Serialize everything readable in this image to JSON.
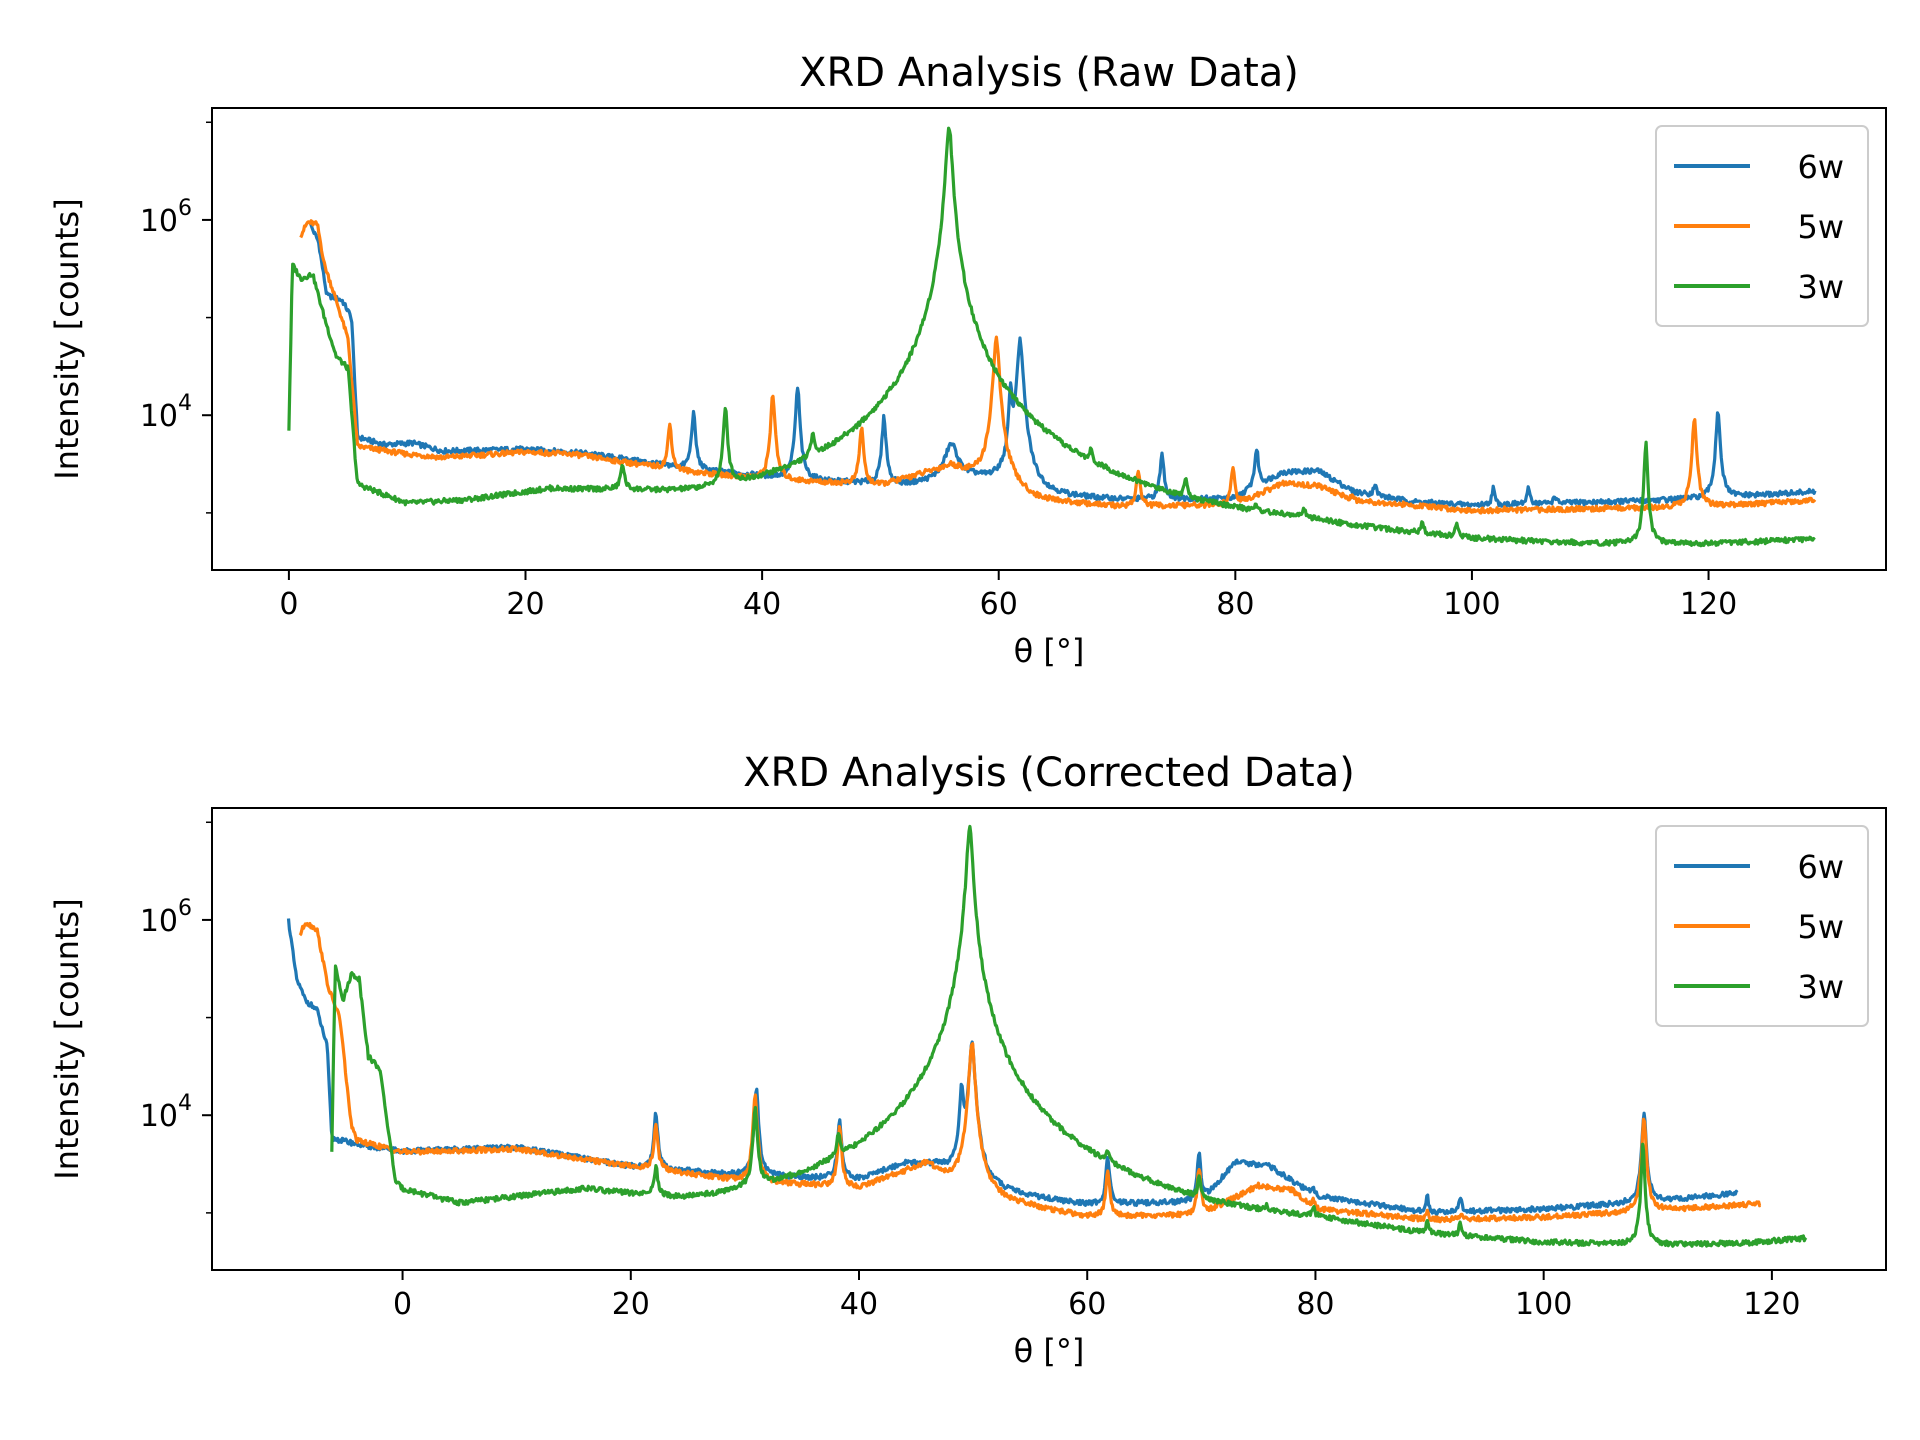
{
  "chart_data": [
    {
      "type": "line",
      "title": "XRD Analysis (Raw Data)",
      "xlabel": "θ [°]",
      "ylabel": "Intensity [counts]",
      "yscale": "log",
      "xlim": [
        -6.5,
        135
      ],
      "ylim": [
        260,
        14000000
      ],
      "xticks": [
        0,
        20,
        40,
        60,
        80,
        100,
        120
      ],
      "yticks": [
        {
          "value": 10000,
          "base": "10",
          "exp": "4"
        },
        {
          "value": 1000000,
          "base": "10",
          "exp": "6"
        }
      ],
      "grid": false,
      "legend_position": "top-right",
      "series": [
        {
          "name": "6w",
          "color": "#1f77b4",
          "background": [
            [
              1.8,
              900000
            ],
            [
              2.5,
              600000
            ],
            [
              3.2,
              170000
            ],
            [
              4.5,
              150000
            ],
            [
              5.3,
              100000
            ],
            [
              5.8,
              6000
            ],
            [
              8,
              5000
            ],
            [
              10.5,
              5200
            ],
            [
              13,
              4300
            ],
            [
              20,
              4500
            ],
            [
              25,
              4100
            ],
            [
              35,
              2700
            ],
            [
              45,
              2100
            ],
            [
              52,
              1900
            ],
            [
              58,
              2200
            ],
            [
              61,
              1800
            ],
            [
              63,
              1450
            ],
            [
              70,
              1350
            ],
            [
              80,
              1400
            ],
            [
              84,
              2600
            ],
            [
              87,
              2700
            ],
            [
              90,
              1650
            ],
            [
              95,
              1300
            ],
            [
              100,
              1200
            ],
            [
              110,
              1280
            ],
            [
              120,
              1400
            ],
            [
              129,
              1650
            ]
          ],
          "peaks": [
            [
              34.2,
              10500,
              0.25
            ],
            [
              43,
              19000,
              0.25
            ],
            [
              50.3,
              9500,
              0.25
            ],
            [
              56,
              5000,
              0.9
            ],
            [
              61,
              17000,
              0.2
            ],
            [
              61.8,
              58000,
              0.35
            ],
            [
              73.8,
              4000,
              0.25
            ],
            [
              81.8,
              4500,
              0.25
            ],
            [
              91.8,
              2000,
              0.2
            ],
            [
              101.8,
              1800,
              0.2
            ],
            [
              104.8,
              1800,
              0.2
            ],
            [
              107,
              1500,
              0.2
            ],
            [
              120.8,
              11000,
              0.25
            ]
          ]
        },
        {
          "name": "5w",
          "color": "#ff7f0e",
          "background": [
            [
              1,
              700000
            ],
            [
              1.6,
              950000
            ],
            [
              2.4,
              900000
            ],
            [
              3,
              350000
            ],
            [
              4,
              150000
            ],
            [
              5,
              60000
            ],
            [
              5.8,
              4800
            ],
            [
              10,
              4000
            ],
            [
              13,
              3700
            ],
            [
              20,
              4200
            ],
            [
              24,
              4000
            ],
            [
              33,
              2700
            ],
            [
              40,
              2200
            ],
            [
              50,
              1900
            ],
            [
              56,
              3000
            ],
            [
              59,
              2000
            ],
            [
              63,
              1300
            ],
            [
              70,
              1150
            ],
            [
              80,
              1200
            ],
            [
              84,
              2000
            ],
            [
              87,
              1900
            ],
            [
              90,
              1350
            ],
            [
              100,
              1050
            ],
            [
              110,
              1100
            ],
            [
              120,
              1150
            ],
            [
              129,
              1350
            ]
          ],
          "peaks": [
            [
              32.2,
              8000,
              0.25
            ],
            [
              40.9,
              16500,
              0.25
            ],
            [
              48.4,
              7500,
              0.25
            ],
            [
              59.8,
              60000,
              0.35
            ],
            [
              71.8,
              2700,
              0.25
            ],
            [
              79.8,
              2900,
              0.25
            ],
            [
              89.8,
              1500,
              0.2
            ],
            [
              99.8,
              1100,
              0.2
            ],
            [
              102.8,
              1100,
              0.2
            ],
            [
              118.8,
              9500,
              0.25
            ]
          ]
        },
        {
          "name": "3w",
          "color": "#2ca02c",
          "background": [
            [
              0,
              7000
            ],
            [
              0.3,
              350000
            ],
            [
              1,
              250000
            ],
            [
              2,
              280000
            ],
            [
              3,
              100000
            ],
            [
              4,
              40000
            ],
            [
              5,
              30000
            ],
            [
              5.8,
              1800
            ],
            [
              10,
              1050
            ],
            [
              15,
              1100
            ],
            [
              22,
              1400
            ],
            [
              28,
              1200
            ],
            [
              35,
              800
            ],
            [
              45,
              600
            ],
            [
              52,
              650
            ],
            [
              54.5,
              1600
            ],
            [
              56,
              2000
            ],
            [
              57.5,
              1200
            ],
            [
              59,
              600
            ],
            [
              65,
              420
            ],
            [
              75,
              380
            ],
            [
              85,
              430
            ],
            [
              90,
              380
            ],
            [
              100,
              330
            ],
            [
              110,
              340
            ],
            [
              120,
              380
            ],
            [
              129,
              460
            ]
          ],
          "peaks": [
            [
              28.2,
              2600,
              0.25
            ],
            [
              36.9,
              10500,
              0.25
            ],
            [
              44.3,
              3300,
              0.25
            ],
            [
              55.8,
              9000000,
              0.35
            ],
            [
              67.8,
              1400,
              0.2
            ],
            [
              75.8,
              1300,
              0.2
            ],
            [
              81.7,
              550,
              0.2
            ],
            [
              85.8,
              650,
              0.2
            ],
            [
              95.8,
              550,
              0.2
            ],
            [
              98.7,
              560,
              0.2
            ],
            [
              114.7,
              5000,
              0.2
            ]
          ]
        }
      ]
    },
    {
      "type": "line",
      "title": "XRD Analysis (Corrected Data)",
      "xlabel": "θ [°]",
      "ylabel": "Intensity [counts]",
      "yscale": "log",
      "xlim": [
        -16.7,
        130
      ],
      "ylim": [
        260,
        14000000
      ],
      "xticks": [
        0,
        20,
        40,
        60,
        80,
        100,
        120
      ],
      "yticks": [
        {
          "value": 10000,
          "base": "10",
          "exp": "4"
        },
        {
          "value": 1000000,
          "base": "10",
          "exp": "6"
        }
      ],
      "grid": false,
      "legend_position": "top-right",
      "series": [
        {
          "name": "6w",
          "color": "#1f77b4",
          "background": [
            [
              -10,
              1000000
            ],
            [
              -9.3,
              250000
            ],
            [
              -8.5,
              150000
            ],
            [
              -7.5,
              120000
            ],
            [
              -6.6,
              50000
            ],
            [
              -6.2,
              5800
            ],
            [
              -3,
              4800
            ],
            [
              0,
              4300
            ],
            [
              10,
              4700
            ],
            [
              20,
              3000
            ],
            [
              30,
              2400
            ],
            [
              40,
              2200
            ],
            [
              44,
              3200
            ],
            [
              47,
              3000
            ],
            [
              50,
              1700
            ],
            [
              60,
              1200
            ],
            [
              70,
              1300
            ],
            [
              73,
              3300
            ],
            [
              76,
              3000
            ],
            [
              80,
              1500
            ],
            [
              90,
              1000
            ],
            [
              100,
              1100
            ],
            [
              110,
              1300
            ],
            [
              117,
              1600
            ]
          ],
          "peaks": [
            [
              22.2,
              10500,
              0.25
            ],
            [
              31,
              19000,
              0.25
            ],
            [
              38.3,
              9000,
              0.25
            ],
            [
              49,
              18000,
              0.25
            ],
            [
              49.9,
              55000,
              0.35
            ],
            [
              61.8,
              3700,
              0.25
            ],
            [
              69.8,
              4200,
              0.25
            ],
            [
              79.8,
              1800,
              0.2
            ],
            [
              89.8,
              1500,
              0.2
            ],
            [
              92.7,
              1500,
              0.2
            ],
            [
              108.8,
              11000,
              0.25
            ]
          ]
        },
        {
          "name": "5w",
          "color": "#ff7f0e",
          "background": [
            [
              -9,
              700000
            ],
            [
              -8.5,
              950000
            ],
            [
              -7.5,
              800000
            ],
            [
              -6.5,
              200000
            ],
            [
              -5.5,
              100000
            ],
            [
              -4.5,
              8000
            ],
            [
              -4,
              5500
            ],
            [
              0,
              4200
            ],
            [
              10,
              4500
            ],
            [
              20,
              3000
            ],
            [
              30,
              2100
            ],
            [
              40,
              1800
            ],
            [
              46,
              3200
            ],
            [
              48,
              2000
            ],
            [
              52,
              1300
            ],
            [
              60,
              900
            ],
            [
              70,
              950
            ],
            [
              75,
              1900
            ],
            [
              78,
              1700
            ],
            [
              80,
              1100
            ],
            [
              90,
              850
            ],
            [
              100,
              900
            ],
            [
              110,
              1050
            ],
            [
              119,
              1250
            ]
          ],
          "peaks": [
            [
              22.2,
              8000,
              0.25
            ],
            [
              30.9,
              16500,
              0.25
            ],
            [
              38.3,
              7500,
              0.25
            ],
            [
              49.9,
              55000,
              0.35
            ],
            [
              61.8,
              2700,
              0.25
            ],
            [
              69.8,
              2900,
              0.25
            ],
            [
              79.8,
              1400,
              0.2
            ],
            [
              89.8,
              1000,
              0.2
            ],
            [
              92.8,
              1000,
              0.2
            ],
            [
              108.8,
              9500,
              0.25
            ]
          ]
        },
        {
          "name": "3w",
          "color": "#2ca02c",
          "background": [
            [
              -6.2,
              4200
            ],
            [
              -5.9,
              350000
            ],
            [
              -5.2,
              150000
            ],
            [
              -4.5,
              280000
            ],
            [
              -3.8,
              250000
            ],
            [
              -3,
              40000
            ],
            [
              -2,
              30000
            ],
            [
              -0.6,
              1900
            ],
            [
              0,
              1600
            ],
            [
              5,
              1050
            ],
            [
              10,
              1200
            ],
            [
              16,
              1400
            ],
            [
              20,
              1100
            ],
            [
              25,
              760
            ],
            [
              35,
              600
            ],
            [
              45,
              580
            ],
            [
              47,
              800
            ],
            [
              49,
              1500
            ],
            [
              50.5,
              1200
            ],
            [
              52,
              600
            ],
            [
              60,
              420
            ],
            [
              70,
              380
            ],
            [
              80,
              460
            ],
            [
              90,
              350
            ],
            [
              100,
              330
            ],
            [
              110,
              350
            ],
            [
              118,
              400
            ],
            [
              123,
              470
            ]
          ],
          "peaks": [
            [
              22.2,
              2400,
              0.25
            ],
            [
              30.9,
              10500,
              0.25
            ],
            [
              38.2,
              3300,
              0.25
            ],
            [
              49.7,
              9000000,
              0.35
            ],
            [
              61.8,
              1400,
              0.2
            ],
            [
              69.8,
              1300,
              0.2
            ],
            [
              75.7,
              550,
              0.2
            ],
            [
              79.8,
              680,
              0.2
            ],
            [
              89.8,
              550,
              0.2
            ],
            [
              92.7,
              560,
              0.2
            ],
            [
              108.7,
              5000,
              0.2
            ]
          ]
        }
      ]
    }
  ]
}
